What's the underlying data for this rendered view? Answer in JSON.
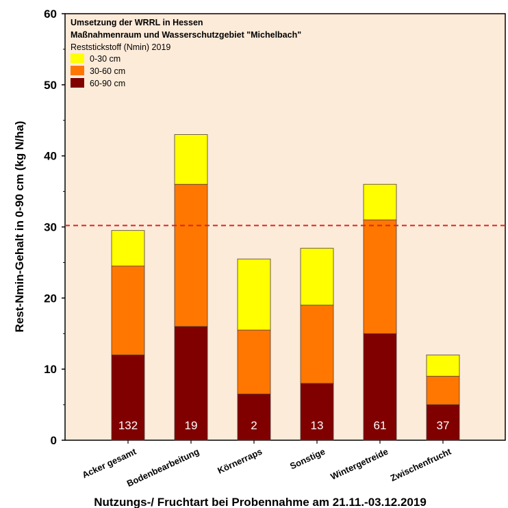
{
  "chart_data": {
    "type": "bar",
    "stacked": true,
    "title_lines": [
      "Umsetzung der WRRL in Hessen",
      "Maßnahmenraum und Wasserschutzgebiet \"Michelbach\""
    ],
    "subtitle": "Reststickstoff (Nmin) 2019",
    "xlabel": "Nutzungs-/ Fruchtart bei Probennahme am 21.11.-03.12.2019",
    "ylabel": "Rest-Nmin-Gehalt in 0-90 cm (kg N/ha)",
    "ylim": [
      0,
      60
    ],
    "yticks": [
      0,
      10,
      20,
      30,
      40,
      50,
      60
    ],
    "categories": [
      "Acker gesamt",
      "Bodenbearbeitung",
      "Körnerraps",
      "Sonstige",
      "Wintergetreide",
      "Zwischenfrucht"
    ],
    "sample_counts": [
      "132",
      "19",
      "2",
      "13",
      "61",
      "37"
    ],
    "series": [
      {
        "name": "60-90 cm",
        "color": "#800000",
        "values": [
          12,
          16,
          6.5,
          8,
          15,
          5
        ]
      },
      {
        "name": "30-60 cm",
        "color": "#ff7700",
        "values": [
          12.5,
          20,
          9,
          11,
          16,
          4
        ]
      },
      {
        "name": "0-30 cm",
        "color": "#ffff00",
        "values": [
          5,
          7,
          10,
          8,
          5,
          3
        ]
      }
    ],
    "legend_order": [
      "0-30 cm",
      "30-60 cm",
      "60-90 cm"
    ],
    "legend_position": "top-left",
    "reference_line": {
      "value": 30.2,
      "color": "#dd2222",
      "style": "dashed"
    },
    "grid": false,
    "plot_background": "#fcebd9"
  }
}
